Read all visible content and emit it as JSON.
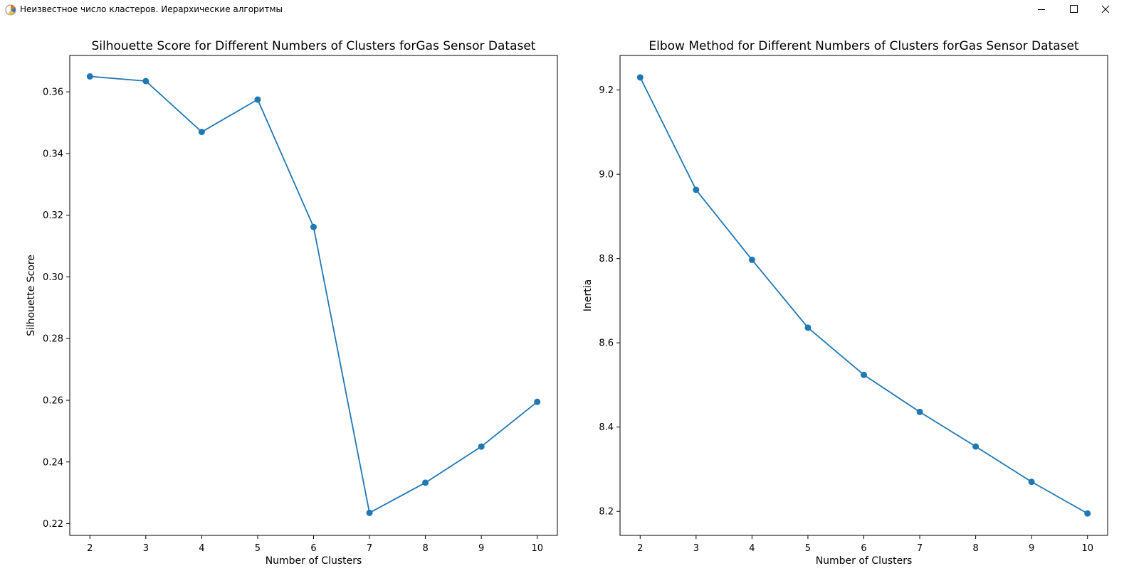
{
  "window": {
    "title": "Неизвестное число кластеров. Иерархические алгоритмы"
  },
  "icons": {
    "app": "matplotlib-figure-icon",
    "minimize": "minimize-icon",
    "maximize": "maximize-icon",
    "close": "close-icon"
  },
  "colors": {
    "series": "#1f77b4",
    "axes": "#000000"
  },
  "chart_data": [
    {
      "type": "line",
      "title": "Silhouette Score for Different Numbers of Clusters forGas Sensor Dataset",
      "xlabel": "Number of Clusters",
      "ylabel": "Silhouette Score",
      "x": [
        2,
        3,
        4,
        5,
        6,
        7,
        8,
        9,
        10
      ],
      "values": [
        0.365,
        0.3635,
        0.347,
        0.3575,
        0.3162,
        0.2235,
        0.2333,
        0.245,
        0.2595
      ],
      "xlim": [
        1.64,
        10.36
      ],
      "ylim": [
        0.2162,
        0.3718
      ],
      "xticks": [
        2,
        3,
        4,
        5,
        6,
        7,
        8,
        9,
        10
      ],
      "yticks": [
        0.22,
        0.24,
        0.26,
        0.28,
        0.3,
        0.32,
        0.34,
        0.36
      ],
      "ytick_labels": [
        "0.22",
        "0.24",
        "0.26",
        "0.28",
        "0.30",
        "0.32",
        "0.34",
        "0.36"
      ],
      "grid": false,
      "marker": "circle"
    },
    {
      "type": "line",
      "title": "Elbow Method for Different Numbers of Clusters forGas Sensor Dataset",
      "xlabel": "Number of Clusters",
      "ylabel": "Inertia",
      "x": [
        2,
        3,
        4,
        5,
        6,
        7,
        8,
        9,
        10
      ],
      "values": [
        9.23,
        8.963,
        8.797,
        8.636,
        8.524,
        8.436,
        8.354,
        8.27,
        8.195
      ],
      "xlim": [
        1.64,
        10.36
      ],
      "ylim": [
        8.143,
        9.282
      ],
      "xticks": [
        2,
        3,
        4,
        5,
        6,
        7,
        8,
        9,
        10
      ],
      "yticks": [
        8.2,
        8.4,
        8.6,
        8.8,
        9.0,
        9.2
      ],
      "ytick_labels": [
        "8.2",
        "8.4",
        "8.6",
        "8.8",
        "9.0",
        "9.2"
      ],
      "grid": false,
      "marker": "circle"
    }
  ]
}
